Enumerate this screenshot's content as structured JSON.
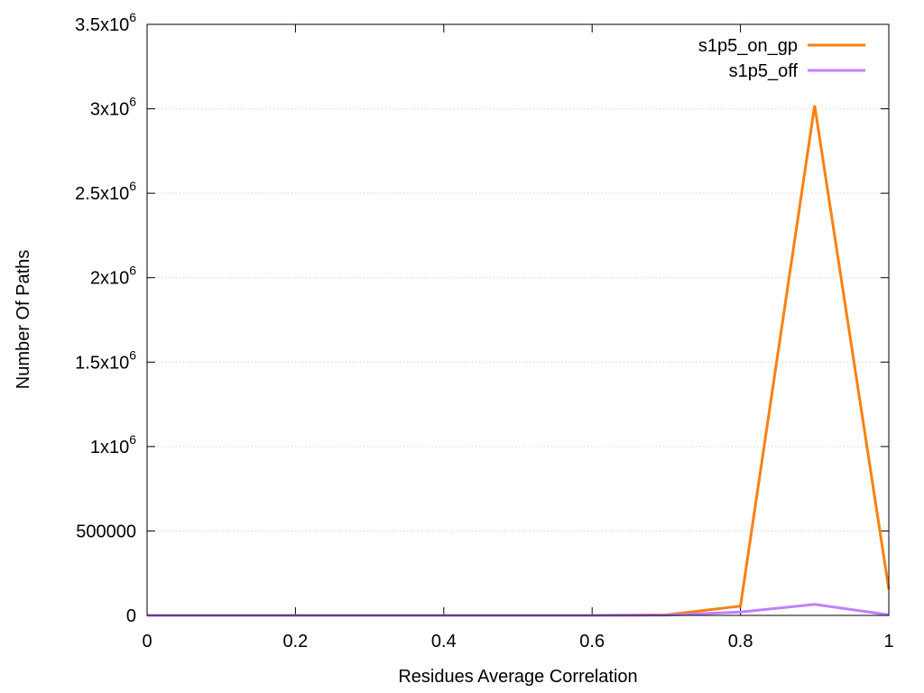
{
  "chart_data": {
    "type": "line",
    "title": "",
    "xlabel": "Residues Average Correlation",
    "ylabel": "Number Of Paths",
    "xlim": [
      0,
      1
    ],
    "ylim": [
      0,
      3500000
    ],
    "x_ticks": [
      0,
      0.2,
      0.4,
      0.6,
      0.8,
      1
    ],
    "x_tick_labels": [
      "0",
      "0.2",
      "0.4",
      "0.6",
      "0.8",
      "1"
    ],
    "y_ticks": [
      {
        "value": 0,
        "mantissa": "0",
        "exp": ""
      },
      {
        "value": 500000,
        "mantissa": "500000",
        "exp": ""
      },
      {
        "value": 1000000,
        "mantissa": "1x10",
        "exp": "6"
      },
      {
        "value": 1500000,
        "mantissa": "1.5x10",
        "exp": "6"
      },
      {
        "value": 2000000,
        "mantissa": "2x10",
        "exp": "6"
      },
      {
        "value": 2500000,
        "mantissa": "2.5x10",
        "exp": "6"
      },
      {
        "value": 3000000,
        "mantissa": "3x10",
        "exp": "6"
      },
      {
        "value": 3500000,
        "mantissa": "3.5x10",
        "exp": "6"
      }
    ],
    "grid": true,
    "legend_position": "top-right",
    "x": [
      0,
      0.1,
      0.2,
      0.3,
      0.4,
      0.5,
      0.6,
      0.7,
      0.8,
      0.9,
      1.0
    ],
    "series": [
      {
        "name": "s1p5_on_gp",
        "color": "#ff7f0e",
        "values": [
          0,
          0,
          0,
          0,
          0,
          0,
          0,
          3000,
          55000,
          3020000,
          155000
        ]
      },
      {
        "name": "s1p5_off",
        "color": "#c080ff",
        "values": [
          0,
          0,
          0,
          0,
          0,
          0,
          0,
          1000,
          20000,
          65000,
          3000
        ]
      }
    ]
  }
}
